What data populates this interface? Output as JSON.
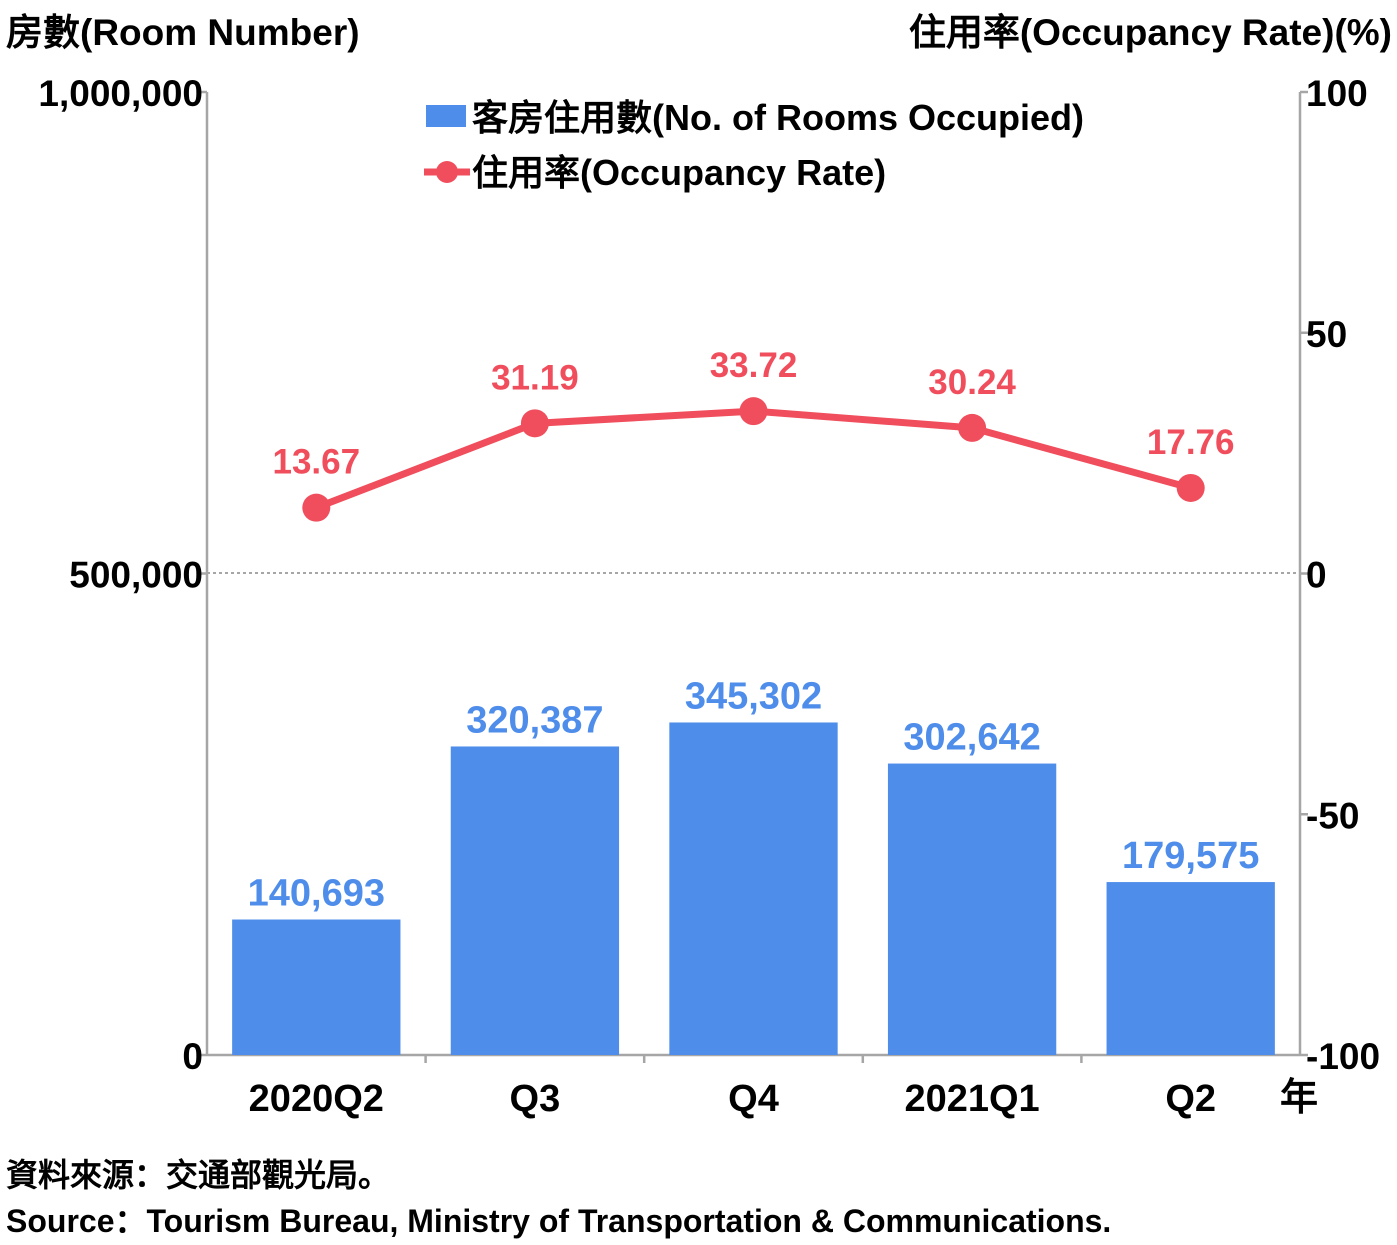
{
  "chart_data": {
    "type": "bar",
    "categories": [
      "2020Q2",
      "Q3",
      "Q4",
      "2021Q1",
      "Q2"
    ],
    "x_unit_label": "年",
    "series": [
      {
        "name": "客房住用數(No. of Rooms Occupied)",
        "type": "bar",
        "axis": "left",
        "values": [
          140693,
          320387,
          345302,
          302642,
          179575
        ],
        "value_labels": [
          "140,693",
          "320,387",
          "345,302",
          "302,642",
          "179,575"
        ],
        "color": "#4f8dea"
      },
      {
        "name": "住用率(Occupancy Rate)",
        "type": "line",
        "axis": "right",
        "values": [
          13.67,
          31.19,
          33.72,
          30.24,
          17.76
        ],
        "value_labels": [
          "13.67",
          "31.19",
          "33.72",
          "30.24",
          "17.76"
        ],
        "color": "#f04e5c"
      }
    ],
    "y_left": {
      "label": "房數(Room Number)",
      "range": [
        0,
        1000000
      ],
      "ticks": [
        0,
        500000,
        1000000
      ],
      "tick_labels": [
        "0",
        "500,000",
        "1,000,000"
      ]
    },
    "y_right": {
      "label": "住用率(Occupancy Rate)(%)",
      "range": [
        -100,
        100
      ],
      "ticks": [
        -100,
        -50,
        0,
        50,
        100
      ],
      "tick_labels": [
        "-100",
        "-50",
        "0",
        "50",
        "100"
      ]
    },
    "gridline": "dotted line at 500,000 / 0",
    "legend_position": "top-center"
  },
  "source": {
    "zh": "資料來源：交通部觀光局。",
    "en": "Source：Tourism Bureau, Ministry of Transportation & Communications."
  }
}
